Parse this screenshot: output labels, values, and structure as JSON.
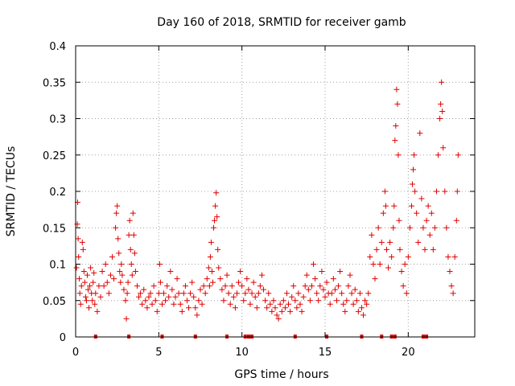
{
  "chart_data": {
    "type": "scatter",
    "title": "Day 160 of 2018, SRMTID for receiver gamb",
    "xlabel": "GPS time / hours",
    "ylabel": "SRMTID / TECUs",
    "xlim": [
      0,
      24
    ],
    "ylim": [
      0,
      0.4
    ],
    "xticks": [
      0,
      5,
      10,
      15,
      20
    ],
    "yticks": [
      0,
      0.05,
      0.1,
      0.15,
      0.2,
      0.25,
      0.3,
      0.35,
      0.4
    ],
    "xtick_labels": [
      "0",
      "5",
      "10",
      "15",
      "20"
    ],
    "ytick_labels": [
      "0",
      "0.05",
      "0.1",
      "0.15",
      "0.2",
      "0.25",
      "0.3",
      "0.35",
      "0.4"
    ],
    "grid": true,
    "marker": "+",
    "color": "#e00000",
    "series": [
      {
        "name": "SRMTID",
        "points": [
          [
            0.05,
            0.095
          ],
          [
            0.1,
            0.155
          ],
          [
            0.12,
            0.185
          ],
          [
            0.15,
            0.135
          ],
          [
            0.18,
            0.11
          ],
          [
            0.22,
            0.08
          ],
          [
            0.25,
            0.06
          ],
          [
            0.3,
            0.045
          ],
          [
            0.35,
            0.07
          ],
          [
            0.4,
            0.13
          ],
          [
            0.45,
            0.12
          ],
          [
            0.5,
            0.09
          ],
          [
            0.55,
            0.075
          ],
          [
            0.6,
            0.055
          ],
          [
            0.65,
            0.05
          ],
          [
            0.7,
            0.085
          ],
          [
            0.75,
            0.065
          ],
          [
            0.8,
            0.04
          ],
          [
            0.85,
            0.07
          ],
          [
            0.9,
            0.095
          ],
          [
            0.95,
            0.06
          ],
          [
            1.0,
            0.05
          ],
          [
            1.05,
            0.075
          ],
          [
            1.1,
            0.088
          ],
          [
            1.15,
            0.045
          ],
          [
            1.2,
            0.06
          ],
          [
            1.3,
            0.035
          ],
          [
            1.4,
            0.07
          ],
          [
            1.5,
            0.055
          ],
          [
            1.6,
            0.09
          ],
          [
            1.7,
            0.07
          ],
          [
            1.8,
            0.1
          ],
          [
            1.9,
            0.075
          ],
          [
            2.0,
            0.06
          ],
          [
            2.1,
            0.085
          ],
          [
            2.2,
            0.11
          ],
          [
            2.3,
            0.08
          ],
          [
            2.4,
            0.15
          ],
          [
            2.45,
            0.17
          ],
          [
            2.5,
            0.18
          ],
          [
            2.55,
            0.135
          ],
          [
            2.6,
            0.115
          ],
          [
            2.65,
            0.09
          ],
          [
            2.7,
            0.075
          ],
          [
            2.75,
            0.1
          ],
          [
            2.8,
            0.085
          ],
          [
            2.9,
            0.065
          ],
          [
            3.0,
            0.05
          ],
          [
            3.05,
            0.025
          ],
          [
            3.1,
            0.06
          ],
          [
            3.15,
            0.075
          ],
          [
            3.2,
            0.14
          ],
          [
            3.25,
            0.16
          ],
          [
            3.3,
            0.12
          ],
          [
            3.35,
            0.1
          ],
          [
            3.4,
            0.085
          ],
          [
            3.45,
            0.17
          ],
          [
            3.5,
            0.14
          ],
          [
            3.55,
            0.115
          ],
          [
            3.6,
            0.09
          ],
          [
            3.7,
            0.07
          ],
          [
            3.8,
            0.055
          ],
          [
            3.9,
            0.06
          ],
          [
            4.0,
            0.045
          ],
          [
            4.1,
            0.065
          ],
          [
            4.2,
            0.05
          ],
          [
            4.3,
            0.04
          ],
          [
            4.4,
            0.055
          ],
          [
            4.5,
            0.06
          ],
          [
            4.6,
            0.045
          ],
          [
            4.7,
            0.07
          ],
          [
            4.8,
            0.05
          ],
          [
            4.9,
            0.035
          ],
          [
            5.0,
            0.06
          ],
          [
            5.05,
            0.1
          ],
          [
            5.1,
            0.075
          ],
          [
            5.2,
            0.045
          ],
          [
            5.3,
            0.06
          ],
          [
            5.4,
            0.05
          ],
          [
            5.5,
            0.07
          ],
          [
            5.6,
            0.055
          ],
          [
            5.7,
            0.09
          ],
          [
            5.8,
            0.065
          ],
          [
            5.9,
            0.045
          ],
          [
            6.0,
            0.055
          ],
          [
            6.1,
            0.08
          ],
          [
            6.2,
            0.06
          ],
          [
            6.3,
            0.045
          ],
          [
            6.4,
            0.035
          ],
          [
            6.5,
            0.06
          ],
          [
            6.6,
            0.07
          ],
          [
            6.7,
            0.05
          ],
          [
            6.8,
            0.04
          ],
          [
            6.9,
            0.06
          ],
          [
            7.0,
            0.075
          ],
          [
            7.1,
            0.055
          ],
          [
            7.2,
            0.04
          ],
          [
            7.3,
            0.03
          ],
          [
            7.4,
            0.05
          ],
          [
            7.5,
            0.065
          ],
          [
            7.6,
            0.045
          ],
          [
            7.7,
            0.07
          ],
          [
            7.8,
            0.06
          ],
          [
            7.9,
            0.08
          ],
          [
            8.0,
            0.095
          ],
          [
            8.05,
            0.07
          ],
          [
            8.1,
            0.11
          ],
          [
            8.15,
            0.13
          ],
          [
            8.2,
            0.09
          ],
          [
            8.25,
            0.075
          ],
          [
            8.3,
            0.15
          ],
          [
            8.35,
            0.16
          ],
          [
            8.4,
            0.18
          ],
          [
            8.45,
            0.198
          ],
          [
            8.5,
            0.165
          ],
          [
            8.55,
            0.12
          ],
          [
            8.6,
            0.095
          ],
          [
            8.7,
            0.08
          ],
          [
            8.8,
            0.065
          ],
          [
            8.9,
            0.05
          ],
          [
            9.0,
            0.07
          ],
          [
            9.1,
            0.085
          ],
          [
            9.2,
            0.06
          ],
          [
            9.3,
            0.045
          ],
          [
            9.4,
            0.07
          ],
          [
            9.5,
            0.055
          ],
          [
            9.6,
            0.04
          ],
          [
            9.7,
            0.06
          ],
          [
            9.8,
            0.075
          ],
          [
            9.9,
            0.09
          ],
          [
            10.0,
            0.07
          ],
          [
            10.1,
            0.05
          ],
          [
            10.2,
            0.06
          ],
          [
            10.3,
            0.08
          ],
          [
            10.4,
            0.065
          ],
          [
            10.5,
            0.045
          ],
          [
            10.6,
            0.06
          ],
          [
            10.7,
            0.075
          ],
          [
            10.8,
            0.055
          ],
          [
            10.9,
            0.04
          ],
          [
            11.0,
            0.06
          ],
          [
            11.1,
            0.07
          ],
          [
            11.2,
            0.085
          ],
          [
            11.3,
            0.065
          ],
          [
            11.4,
            0.05
          ],
          [
            11.5,
            0.04
          ],
          [
            11.6,
            0.06
          ],
          [
            11.7,
            0.045
          ],
          [
            11.8,
            0.035
          ],
          [
            11.9,
            0.05
          ],
          [
            12.0,
            0.04
          ],
          [
            12.1,
            0.03
          ],
          [
            12.2,
            0.025
          ],
          [
            12.3,
            0.045
          ],
          [
            12.4,
            0.035
          ],
          [
            12.5,
            0.05
          ],
          [
            12.6,
            0.04
          ],
          [
            12.7,
            0.06
          ],
          [
            12.8,
            0.045
          ],
          [
            12.9,
            0.035
          ],
          [
            13.0,
            0.055
          ],
          [
            13.1,
            0.07
          ],
          [
            13.2,
            0.05
          ],
          [
            13.3,
            0.04
          ],
          [
            13.4,
            0.06
          ],
          [
            13.5,
            0.045
          ],
          [
            13.6,
            0.035
          ],
          [
            13.7,
            0.055
          ],
          [
            13.8,
            0.07
          ],
          [
            13.9,
            0.085
          ],
          [
            14.0,
            0.065
          ],
          [
            14.1,
            0.05
          ],
          [
            14.2,
            0.07
          ],
          [
            14.3,
            0.1
          ],
          [
            14.4,
            0.08
          ],
          [
            14.5,
            0.06
          ],
          [
            14.6,
            0.05
          ],
          [
            14.7,
            0.07
          ],
          [
            14.8,
            0.09
          ],
          [
            14.9,
            0.065
          ],
          [
            15.0,
            0.055
          ],
          [
            15.1,
            0.075
          ],
          [
            15.2,
            0.06
          ],
          [
            15.3,
            0.045
          ],
          [
            15.4,
            0.06
          ],
          [
            15.5,
            0.08
          ],
          [
            15.6,
            0.065
          ],
          [
            15.7,
            0.05
          ],
          [
            15.8,
            0.07
          ],
          [
            15.9,
            0.09
          ],
          [
            16.0,
            0.06
          ],
          [
            16.1,
            0.045
          ],
          [
            16.2,
            0.035
          ],
          [
            16.3,
            0.05
          ],
          [
            16.4,
            0.07
          ],
          [
            16.5,
            0.085
          ],
          [
            16.6,
            0.06
          ],
          [
            16.7,
            0.045
          ],
          [
            16.8,
            0.065
          ],
          [
            16.9,
            0.05
          ],
          [
            17.0,
            0.035
          ],
          [
            17.1,
            0.06
          ],
          [
            17.2,
            0.04
          ],
          [
            17.3,
            0.03
          ],
          [
            17.4,
            0.05
          ],
          [
            17.5,
            0.045
          ],
          [
            17.6,
            0.06
          ],
          [
            17.7,
            0.11
          ],
          [
            17.8,
            0.14
          ],
          [
            17.9,
            0.1
          ],
          [
            18.0,
            0.08
          ],
          [
            18.1,
            0.12
          ],
          [
            18.2,
            0.15
          ],
          [
            18.3,
            0.1
          ],
          [
            18.4,
            0.13
          ],
          [
            18.5,
            0.17
          ],
          [
            18.6,
            0.2
          ],
          [
            18.65,
            0.18
          ],
          [
            18.7,
            0.12
          ],
          [
            18.8,
            0.095
          ],
          [
            18.9,
            0.13
          ],
          [
            19.0,
            0.11
          ],
          [
            19.1,
            0.15
          ],
          [
            19.15,
            0.18
          ],
          [
            19.2,
            0.27
          ],
          [
            19.25,
            0.29
          ],
          [
            19.3,
            0.34
          ],
          [
            19.35,
            0.32
          ],
          [
            19.4,
            0.25
          ],
          [
            19.45,
            0.16
          ],
          [
            19.5,
            0.12
          ],
          [
            19.6,
            0.09
          ],
          [
            19.7,
            0.07
          ],
          [
            19.8,
            0.1
          ],
          [
            19.9,
            0.06
          ],
          [
            20.0,
            0.11
          ],
          [
            20.1,
            0.15
          ],
          [
            20.2,
            0.18
          ],
          [
            20.25,
            0.21
          ],
          [
            20.3,
            0.23
          ],
          [
            20.35,
            0.25
          ],
          [
            20.4,
            0.2
          ],
          [
            20.5,
            0.17
          ],
          [
            20.6,
            0.13
          ],
          [
            20.7,
            0.28
          ],
          [
            20.8,
            0.19
          ],
          [
            20.9,
            0.15
          ],
          [
            21.0,
            0.12
          ],
          [
            21.1,
            0.16
          ],
          [
            21.2,
            0.18
          ],
          [
            21.3,
            0.14
          ],
          [
            21.4,
            0.17
          ],
          [
            21.5,
            0.12
          ],
          [
            21.6,
            0.15
          ],
          [
            21.7,
            0.2
          ],
          [
            21.8,
            0.25
          ],
          [
            21.9,
            0.3
          ],
          [
            21.95,
            0.32
          ],
          [
            22.0,
            0.35
          ],
          [
            22.05,
            0.31
          ],
          [
            22.1,
            0.26
          ],
          [
            22.2,
            0.2
          ],
          [
            22.3,
            0.15
          ],
          [
            22.4,
            0.11
          ],
          [
            22.5,
            0.09
          ],
          [
            22.6,
            0.07
          ],
          [
            22.7,
            0.06
          ],
          [
            22.8,
            0.11
          ],
          [
            22.9,
            0.16
          ],
          [
            22.95,
            0.2
          ],
          [
            23.0,
            0.25
          ]
        ]
      }
    ],
    "gap_markers_x": [
      1.2,
      3.2,
      5.2,
      7.2,
      9.1,
      10.2,
      10.4,
      10.6,
      13.2,
      15.1,
      17.2,
      18.4,
      19.0,
      19.2,
      20.9,
      21.1
    ]
  }
}
